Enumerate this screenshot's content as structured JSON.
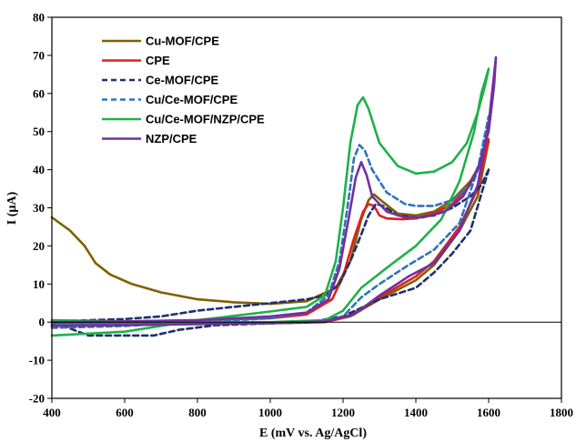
{
  "chart_data": {
    "type": "line",
    "title": "",
    "xlabel": "E (mV vs. Ag/AgCl)",
    "ylabel": "I (µA)",
    "xlim": [
      400,
      1800
    ],
    "ylim": [
      -20,
      80
    ],
    "xticks": [
      400,
      600,
      800,
      1000,
      1200,
      1400,
      1600,
      1800
    ],
    "yticks": [
      -20,
      -10,
      0,
      10,
      20,
      30,
      40,
      50,
      60,
      70,
      80
    ],
    "grid": false,
    "legend_position": "top-left",
    "series": [
      {
        "name": "Cu-MOF/CPE",
        "color": "#7f6000",
        "dash": "solid",
        "upper": [
          [
            400,
            27.5
          ],
          [
            450,
            24
          ],
          [
            490,
            20
          ],
          [
            520,
            15.5
          ],
          [
            560,
            12.5
          ],
          [
            620,
            10
          ],
          [
            700,
            7.8
          ],
          [
            800,
            6
          ],
          [
            900,
            5.2
          ],
          [
            1000,
            4.8
          ],
          [
            1100,
            5.5
          ],
          [
            1180,
            9
          ],
          [
            1220,
            16
          ],
          [
            1250,
            27
          ],
          [
            1270,
            32
          ],
          [
            1285,
            33.5
          ],
          [
            1310,
            31.5
          ],
          [
            1350,
            28.5
          ],
          [
            1400,
            28
          ],
          [
            1450,
            29
          ],
          [
            1500,
            32
          ],
          [
            1550,
            37
          ],
          [
            1580,
            42
          ],
          [
            1600,
            47.5
          ]
        ],
        "lower": [
          [
            1600,
            47.5
          ],
          [
            1570,
            33
          ],
          [
            1520,
            24
          ],
          [
            1450,
            15
          ],
          [
            1400,
            11
          ],
          [
            1300,
            6
          ],
          [
            1220,
            1.5
          ],
          [
            1150,
            0
          ],
          [
            1000,
            -0.2
          ],
          [
            800,
            -0.3
          ],
          [
            600,
            -0.4
          ],
          [
            400,
            -0.5
          ]
        ]
      },
      {
        "name": "CPE",
        "color": "#e02020",
        "dash": "solid",
        "upper": [
          [
            400,
            0
          ],
          [
            600,
            0.2
          ],
          [
            800,
            0.5
          ],
          [
            1000,
            1
          ],
          [
            1100,
            2
          ],
          [
            1170,
            6
          ],
          [
            1200,
            12
          ],
          [
            1230,
            22
          ],
          [
            1255,
            29
          ],
          [
            1270,
            31
          ],
          [
            1285,
            30.5
          ],
          [
            1300,
            28
          ],
          [
            1320,
            27.2
          ],
          [
            1360,
            27
          ],
          [
            1400,
            27.2
          ],
          [
            1450,
            28.5
          ],
          [
            1500,
            31
          ],
          [
            1540,
            35
          ],
          [
            1570,
            40
          ],
          [
            1590,
            46
          ],
          [
            1600,
            48
          ]
        ],
        "lower": [
          [
            1600,
            48
          ],
          [
            1570,
            35
          ],
          [
            1520,
            25
          ],
          [
            1450,
            16
          ],
          [
            1400,
            12
          ],
          [
            1300,
            6.5
          ],
          [
            1220,
            1.8
          ],
          [
            1150,
            0
          ],
          [
            1000,
            -0.3
          ],
          [
            800,
            -0.5
          ],
          [
            600,
            -0.6
          ],
          [
            400,
            -0.7
          ]
        ]
      },
      {
        "name": "Ce-MOF/CPE",
        "color": "#1f2f6f",
        "dash": "dashed",
        "upper": [
          [
            1600,
            40
          ],
          [
            1580,
            36
          ],
          [
            1550,
            33
          ],
          [
            1500,
            30
          ],
          [
            1450,
            28
          ],
          [
            1400,
            27.5
          ],
          [
            1350,
            28
          ],
          [
            1310,
            30.5
          ],
          [
            1290,
            31
          ],
          [
            1270,
            28
          ],
          [
            1250,
            23
          ],
          [
            1220,
            16
          ],
          [
            1190,
            10
          ],
          [
            1150,
            7
          ],
          [
            1100,
            6
          ],
          [
            1000,
            5
          ],
          [
            900,
            4
          ],
          [
            800,
            3
          ],
          [
            700,
            1.5
          ],
          [
            600,
            0.8
          ],
          [
            400,
            0.2
          ]
        ],
        "lower": [
          [
            400,
            -3.5
          ],
          [
            500,
            -3.5
          ],
          [
            600,
            -3.5
          ],
          [
            680,
            -3.5
          ],
          [
            750,
            -2
          ],
          [
            850,
            -0.8
          ],
          [
            1000,
            -0.3
          ],
          [
            1100,
            -0.1
          ],
          [
            1200,
            1.5
          ],
          [
            1300,
            6
          ],
          [
            1400,
            9
          ],
          [
            1450,
            13
          ],
          [
            1500,
            18
          ],
          [
            1550,
            24
          ],
          [
            1600,
            40
          ]
        ]
      },
      {
        "name": "Cu/Ce-MOF/CPE",
        "color": "#2e75b6",
        "dash": "dashed",
        "upper": [
          [
            400,
            -1.5
          ],
          [
            600,
            -1
          ],
          [
            800,
            0
          ],
          [
            1000,
            1
          ],
          [
            1100,
            2.5
          ],
          [
            1160,
            7
          ],
          [
            1190,
            16
          ],
          [
            1215,
            32
          ],
          [
            1230,
            43
          ],
          [
            1245,
            46.5
          ],
          [
            1260,
            45
          ],
          [
            1280,
            40
          ],
          [
            1320,
            34
          ],
          [
            1370,
            31
          ],
          [
            1400,
            30.5
          ],
          [
            1450,
            30.5
          ],
          [
            1500,
            32
          ],
          [
            1550,
            36
          ],
          [
            1580,
            43
          ],
          [
            1600,
            54
          ]
        ],
        "lower": [
          [
            1600,
            54
          ],
          [
            1570,
            40
          ],
          [
            1520,
            26
          ],
          [
            1450,
            19
          ],
          [
            1380,
            15
          ],
          [
            1300,
            10
          ],
          [
            1250,
            6.5
          ],
          [
            1200,
            1.5
          ],
          [
            1150,
            0.3
          ],
          [
            1000,
            -0.3
          ],
          [
            800,
            -0.5
          ],
          [
            600,
            -0.5
          ],
          [
            400,
            -0.5
          ]
        ]
      },
      {
        "name": "Cu/Ce-MOF/NZP/CPE",
        "color": "#1fb04a",
        "dash": "solid",
        "upper": [
          [
            400,
            -3.5
          ],
          [
            600,
            -2.5
          ],
          [
            700,
            -1
          ],
          [
            800,
            0.5
          ],
          [
            1000,
            2.8
          ],
          [
            1100,
            4
          ],
          [
            1150,
            7
          ],
          [
            1180,
            16
          ],
          [
            1200,
            30
          ],
          [
            1220,
            47
          ],
          [
            1240,
            57
          ],
          [
            1255,
            59
          ],
          [
            1270,
            56
          ],
          [
            1300,
            47
          ],
          [
            1350,
            41
          ],
          [
            1400,
            39
          ],
          [
            1450,
            39.5
          ],
          [
            1500,
            42
          ],
          [
            1540,
            47
          ],
          [
            1570,
            55
          ],
          [
            1590,
            62
          ],
          [
            1600,
            66.5
          ]
        ],
        "lower": [
          [
            1600,
            66.5
          ],
          [
            1580,
            60
          ],
          [
            1560,
            50
          ],
          [
            1520,
            37
          ],
          [
            1470,
            27
          ],
          [
            1400,
            20
          ],
          [
            1330,
            15
          ],
          [
            1250,
            9
          ],
          [
            1200,
            3
          ],
          [
            1150,
            0.5
          ],
          [
            1000,
            0
          ],
          [
            800,
            0
          ],
          [
            600,
            0.2
          ],
          [
            400,
            0.5
          ]
        ]
      },
      {
        "name": "NZP/CPE",
        "color": "#7030a0",
        "dash": "solid",
        "upper": [
          [
            400,
            0
          ],
          [
            600,
            0.2
          ],
          [
            800,
            0.5
          ],
          [
            1000,
            1.5
          ],
          [
            1100,
            2.5
          ],
          [
            1160,
            6
          ],
          [
            1190,
            14
          ],
          [
            1215,
            27
          ],
          [
            1235,
            38
          ],
          [
            1250,
            42
          ],
          [
            1265,
            38.5
          ],
          [
            1280,
            33
          ],
          [
            1320,
            29
          ],
          [
            1370,
            27.5
          ],
          [
            1420,
            27.5
          ],
          [
            1480,
            29
          ],
          [
            1530,
            33
          ],
          [
            1570,
            40
          ],
          [
            1600,
            50
          ],
          [
            1615,
            62
          ],
          [
            1620,
            69.5
          ]
        ],
        "lower": [
          [
            1620,
            69.5
          ],
          [
            1600,
            52
          ],
          [
            1570,
            36
          ],
          [
            1520,
            24
          ],
          [
            1450,
            15.5
          ],
          [
            1380,
            12
          ],
          [
            1300,
            7
          ],
          [
            1230,
            2
          ],
          [
            1150,
            0.2
          ],
          [
            1000,
            -0.2
          ],
          [
            800,
            -0.5
          ],
          [
            600,
            -0.8
          ],
          [
            400,
            -1
          ]
        ]
      }
    ]
  }
}
